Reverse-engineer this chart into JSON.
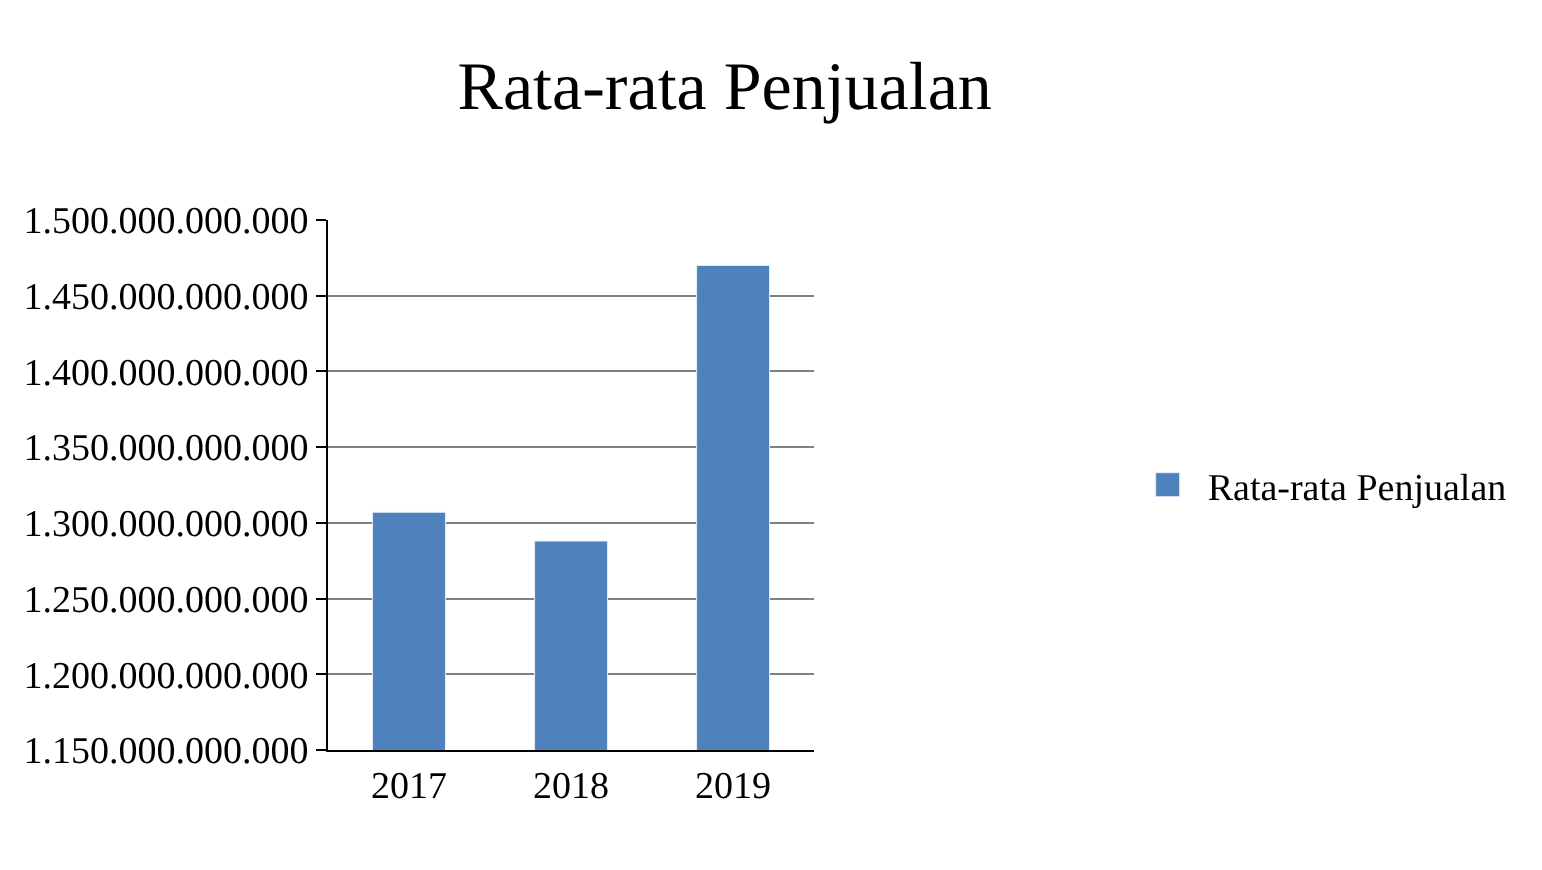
{
  "chart_data": {
    "type": "bar",
    "title": "Rata-rata Penjualan",
    "categories": [
      "2017",
      "2018",
      "2019"
    ],
    "series": [
      {
        "name": "Rata-rata Penjualan",
        "color": "#4f81bd",
        "values": [
          1307000000000,
          1288000000000,
          1470000000000
        ]
      }
    ],
    "ylim": [
      1150000000000,
      1500000000000
    ],
    "yticks": [
      {
        "value": 1150000000000,
        "label": "1.150.000.000.000"
      },
      {
        "value": 1200000000000,
        "label": "1.200.000.000.000"
      },
      {
        "value": 1250000000000,
        "label": "1.250.000.000.000"
      },
      {
        "value": 1300000000000,
        "label": "1.300.000.000.000"
      },
      {
        "value": 1350000000000,
        "label": "1.350.000.000.000"
      },
      {
        "value": 1400000000000,
        "label": "1.400.000.000.000"
      },
      {
        "value": 1450000000000,
        "label": "1.450.000.000.000"
      },
      {
        "value": 1500000000000,
        "label": "1.500.000.000.000"
      }
    ],
    "grid": "y",
    "legend": "right"
  }
}
